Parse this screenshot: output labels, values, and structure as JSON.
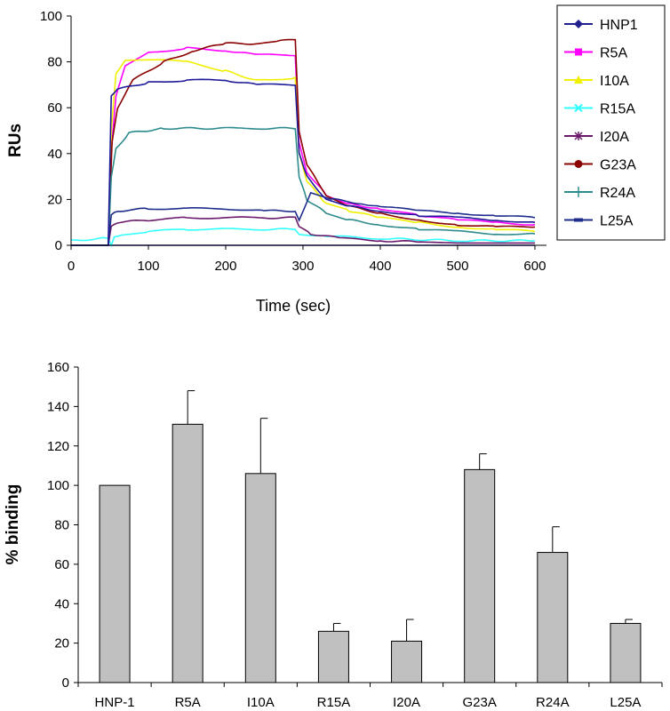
{
  "chart_data": [
    {
      "type": "line",
      "xlabel": "Time (sec)",
      "ylabel": "RUs",
      "xlim": [
        0,
        615
      ],
      "ylim": [
        0,
        100
      ],
      "x_ticks": [
        "0",
        "100",
        "200",
        "300",
        "400",
        "500",
        "600"
      ],
      "y_ticks": [
        "0",
        "20",
        "40",
        "60",
        "80",
        "100"
      ],
      "legend_position": "top-right",
      "series": [
        {
          "name": "HNP1",
          "color": "#1f1f8f",
          "marker": "diamond",
          "points": [
            [
              0,
              0
            ],
            [
              50,
              0
            ],
            [
              55,
              0
            ],
            [
              100,
              0
            ],
            [
              200,
              0
            ],
            [
              290,
              0
            ],
            [
              300,
              0
            ],
            [
              400,
              0
            ],
            [
              500,
              0
            ],
            [
              600,
              0
            ]
          ]
        },
        {
          "name": "R5A",
          "color": "#ff00ff",
          "marker": "square",
          "points": [
            [
              0,
              0
            ],
            [
              48,
              0
            ],
            [
              52,
              40
            ],
            [
              58,
              65
            ],
            [
              70,
              78
            ],
            [
              100,
              84
            ],
            [
              150,
              86
            ],
            [
              200,
              85
            ],
            [
              240,
              83
            ],
            [
              290,
              83
            ],
            [
              295,
              45
            ],
            [
              305,
              32
            ],
            [
              330,
              22
            ],
            [
              360,
              18
            ],
            [
              400,
              16
            ],
            [
              450,
              13
            ],
            [
              500,
              11
            ],
            [
              550,
              10
            ],
            [
              600,
              9
            ]
          ]
        },
        {
          "name": "I10A",
          "color": "#f0f000",
          "marker": "triangle",
          "points": [
            [
              0,
              0
            ],
            [
              48,
              0
            ],
            [
              52,
              50
            ],
            [
              58,
              75
            ],
            [
              70,
              81
            ],
            [
              100,
              81
            ],
            [
              150,
              80
            ],
            [
              200,
              76
            ],
            [
              240,
              72
            ],
            [
              290,
              73
            ],
            [
              295,
              40
            ],
            [
              305,
              28
            ],
            [
              330,
              18
            ],
            [
              360,
              15
            ],
            [
              400,
              12
            ],
            [
              450,
              10
            ],
            [
              500,
              8
            ],
            [
              550,
              7
            ],
            [
              600,
              6
            ]
          ]
        },
        {
          "name": "R15A",
          "color": "#33ffff",
          "marker": "x",
          "points": [
            [
              0,
              2
            ],
            [
              40,
              3
            ],
            [
              48,
              3
            ],
            [
              52,
              0
            ],
            [
              56,
              4
            ],
            [
              70,
              5
            ],
            [
              100,
              6
            ],
            [
              150,
              7
            ],
            [
              200,
              7
            ],
            [
              250,
              7
            ],
            [
              290,
              7
            ],
            [
              295,
              5
            ],
            [
              330,
              4
            ],
            [
              400,
              3
            ],
            [
              500,
              2
            ],
            [
              600,
              2
            ]
          ]
        },
        {
          "name": "I20A",
          "color": "#6b1a6b",
          "marker": "star",
          "points": [
            [
              0,
              0
            ],
            [
              48,
              0
            ],
            [
              52,
              8
            ],
            [
              60,
              10
            ],
            [
              100,
              11
            ],
            [
              150,
              12
            ],
            [
              200,
              12
            ],
            [
              250,
              12
            ],
            [
              290,
              12
            ],
            [
              295,
              8
            ],
            [
              310,
              5
            ],
            [
              350,
              3
            ],
            [
              400,
              2
            ],
            [
              500,
              1
            ],
            [
              600,
              1
            ]
          ]
        },
        {
          "name": "G23A",
          "color": "#8b0000",
          "marker": "circle",
          "points": [
            [
              0,
              0
            ],
            [
              48,
              0
            ],
            [
              53,
              45
            ],
            [
              60,
              60
            ],
            [
              80,
              72
            ],
            [
              120,
              80
            ],
            [
              160,
              85
            ],
            [
              200,
              88
            ],
            [
              240,
              88
            ],
            [
              270,
              89
            ],
            [
              290,
              90
            ],
            [
              295,
              50
            ],
            [
              305,
              35
            ],
            [
              330,
              22
            ],
            [
              360,
              17
            ],
            [
              400,
              14
            ],
            [
              450,
              11
            ],
            [
              500,
              9
            ],
            [
              550,
              8
            ],
            [
              600,
              8
            ]
          ]
        },
        {
          "name": "R24A",
          "color": "#2e8b8b",
          "marker": "plus",
          "points": [
            [
              0,
              0
            ],
            [
              48,
              0
            ],
            [
              52,
              30
            ],
            [
              58,
              42
            ],
            [
              75,
              49
            ],
            [
              120,
              51
            ],
            [
              200,
              51
            ],
            [
              250,
              51
            ],
            [
              290,
              51
            ],
            [
              295,
              30
            ],
            [
              305,
              20
            ],
            [
              330,
              14
            ],
            [
              360,
              11
            ],
            [
              400,
              9
            ],
            [
              450,
              7
            ],
            [
              500,
              6
            ],
            [
              550,
              5
            ],
            [
              600,
              5
            ]
          ]
        },
        {
          "name": "L25A",
          "color": "#1e2d8c",
          "marker": "dash",
          "points": [
            [
              0,
              0
            ],
            [
              48,
              0
            ],
            [
              52,
              13
            ],
            [
              60,
              15
            ],
            [
              100,
              16
            ],
            [
              150,
              16
            ],
            [
              200,
              16
            ],
            [
              250,
              15
            ],
            [
              290,
              15
            ],
            [
              295,
              11
            ],
            [
              310,
              23
            ],
            [
              340,
              20
            ],
            [
              380,
              18
            ],
            [
              400,
              17
            ],
            [
              450,
              15
            ],
            [
              500,
              14
            ],
            [
              550,
              13
            ],
            [
              600,
              12
            ]
          ]
        },
        {
          "name": "",
          "color": "#1e1a9a",
          "marker": "none",
          "points": [
            [
              0,
              0
            ],
            [
              48,
              0
            ],
            [
              52,
              65
            ],
            [
              60,
              68
            ],
            [
              100,
              71
            ],
            [
              150,
              72
            ],
            [
              200,
              72
            ],
            [
              240,
              70
            ],
            [
              290,
              70
            ],
            [
              295,
              40
            ],
            [
              305,
              30
            ],
            [
              330,
              20
            ],
            [
              360,
              17
            ],
            [
              400,
              15
            ],
            [
              450,
              13
            ],
            [
              500,
              12
            ],
            [
              550,
              11
            ],
            [
              600,
              10
            ]
          ]
        }
      ]
    },
    {
      "type": "bar",
      "xlabel": "",
      "ylabel": "% binding",
      "ylim": [
        0,
        160
      ],
      "y_ticks": [
        "0",
        "20",
        "40",
        "60",
        "80",
        "100",
        "120",
        "140",
        "160"
      ],
      "categories": [
        "HNP-1",
        "R5A",
        "I10A",
        "R15A",
        "I20A",
        "G23A",
        "R24A",
        "L25A"
      ],
      "values": [
        100,
        131,
        106,
        26,
        21,
        108,
        66,
        30
      ],
      "errors": [
        0,
        17,
        28,
        4,
        11,
        8,
        13,
        2
      ],
      "bar_color": "#c0c0c0"
    }
  ]
}
